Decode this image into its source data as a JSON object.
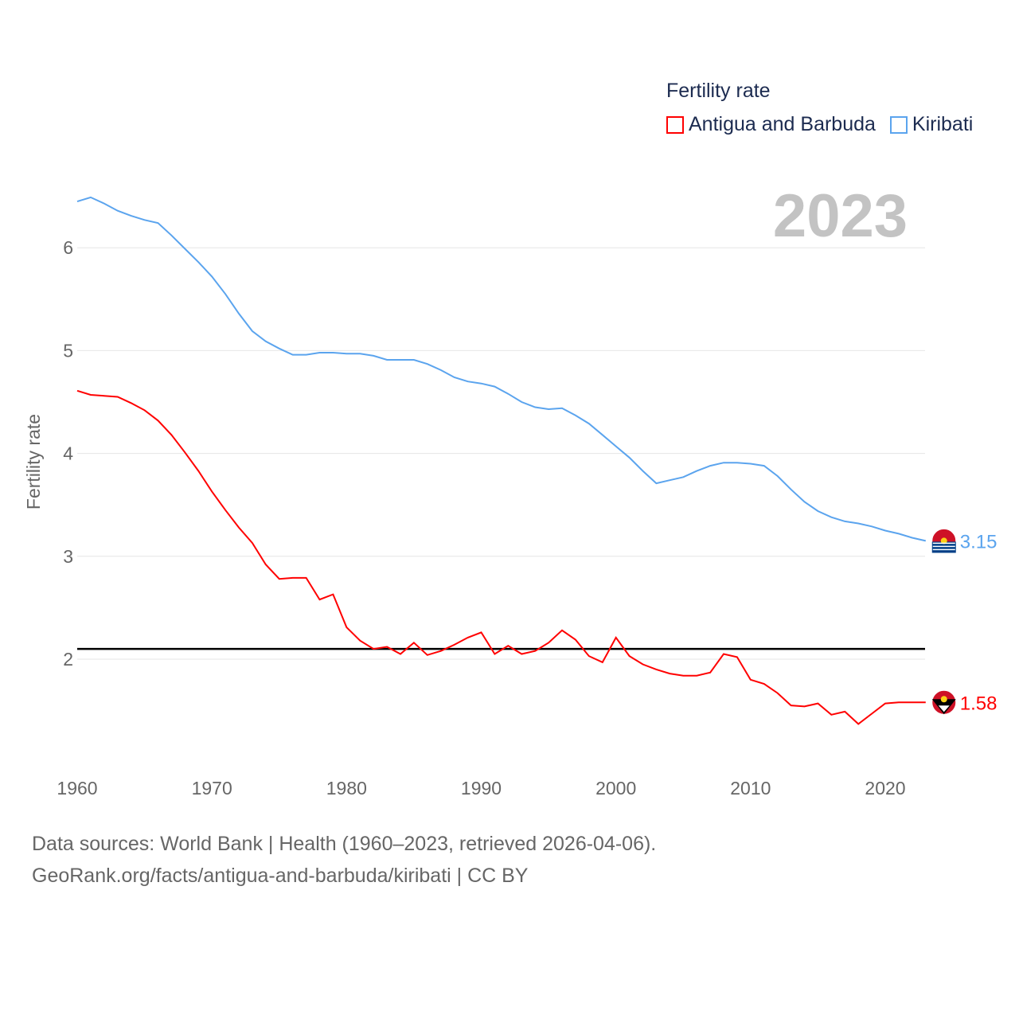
{
  "chart_data": {
    "type": "line",
    "title": "",
    "legend_title": "Fertility rate",
    "legend_position": "top-right",
    "year_label": "2023",
    "xlabel": "",
    "ylabel": "Fertility rate",
    "xlim": [
      1960,
      2023
    ],
    "ylim": [
      1.0,
      6.6
    ],
    "x_ticks": [
      1960,
      1970,
      1980,
      1990,
      2000,
      2010,
      2020
    ],
    "y_ticks": [
      2,
      3,
      4,
      5,
      6
    ],
    "grid": true,
    "reference_line": 2.1,
    "x": [
      1960,
      1961,
      1962,
      1963,
      1964,
      1965,
      1966,
      1967,
      1968,
      1969,
      1970,
      1971,
      1972,
      1973,
      1974,
      1975,
      1976,
      1977,
      1978,
      1979,
      1980,
      1981,
      1982,
      1983,
      1984,
      1985,
      1986,
      1987,
      1988,
      1989,
      1990,
      1991,
      1992,
      1993,
      1994,
      1995,
      1996,
      1997,
      1998,
      1999,
      2000,
      2001,
      2002,
      2003,
      2004,
      2005,
      2006,
      2007,
      2008,
      2009,
      2010,
      2011,
      2012,
      2013,
      2014,
      2015,
      2016,
      2017,
      2018,
      2019,
      2020,
      2021,
      2022,
      2023
    ],
    "series": [
      {
        "name": "Antigua and Barbuda",
        "color": "#ff0000",
        "end_label": "1.58",
        "values": [
          4.61,
          4.57,
          4.56,
          4.55,
          4.49,
          4.42,
          4.32,
          4.18,
          4.01,
          3.83,
          3.63,
          3.45,
          3.28,
          3.13,
          2.92,
          2.78,
          2.79,
          2.79,
          2.58,
          2.63,
          2.31,
          2.18,
          2.1,
          2.12,
          2.05,
          2.16,
          2.04,
          2.08,
          2.14,
          2.21,
          2.26,
          2.05,
          2.13,
          2.05,
          2.08,
          2.16,
          2.28,
          2.19,
          2.03,
          1.97,
          2.21,
          2.03,
          1.95,
          1.9,
          1.86,
          1.84,
          1.84,
          1.87,
          2.05,
          2.02,
          1.8,
          1.76,
          1.67,
          1.55,
          1.54,
          1.57,
          1.46,
          1.49,
          1.37,
          1.47,
          1.57,
          1.58,
          1.58,
          1.58
        ]
      },
      {
        "name": "Kiribati",
        "color": "#5ba4ee",
        "end_label": "3.15",
        "values": [
          6.45,
          6.49,
          6.43,
          6.36,
          6.31,
          6.27,
          6.24,
          6.12,
          5.99,
          5.86,
          5.72,
          5.55,
          5.36,
          5.19,
          5.09,
          5.02,
          4.96,
          4.96,
          4.98,
          4.98,
          4.97,
          4.97,
          4.95,
          4.91,
          4.91,
          4.91,
          4.87,
          4.81,
          4.74,
          4.7,
          4.68,
          4.65,
          4.58,
          4.5,
          4.45,
          4.43,
          4.44,
          4.37,
          4.29,
          4.18,
          4.07,
          3.96,
          3.83,
          3.71,
          3.74,
          3.77,
          3.83,
          3.88,
          3.91,
          3.91,
          3.9,
          3.88,
          3.78,
          3.65,
          3.53,
          3.44,
          3.38,
          3.34,
          3.32,
          3.29,
          3.25,
          3.22,
          3.18,
          3.15
        ]
      }
    ]
  },
  "footer": {
    "line1": "Data sources: World Bank | Health (1960–2023, retrieved 2026-04-06).",
    "line2": "GeoRank.org/facts/antigua-and-barbuda/kiribati | CC BY"
  }
}
